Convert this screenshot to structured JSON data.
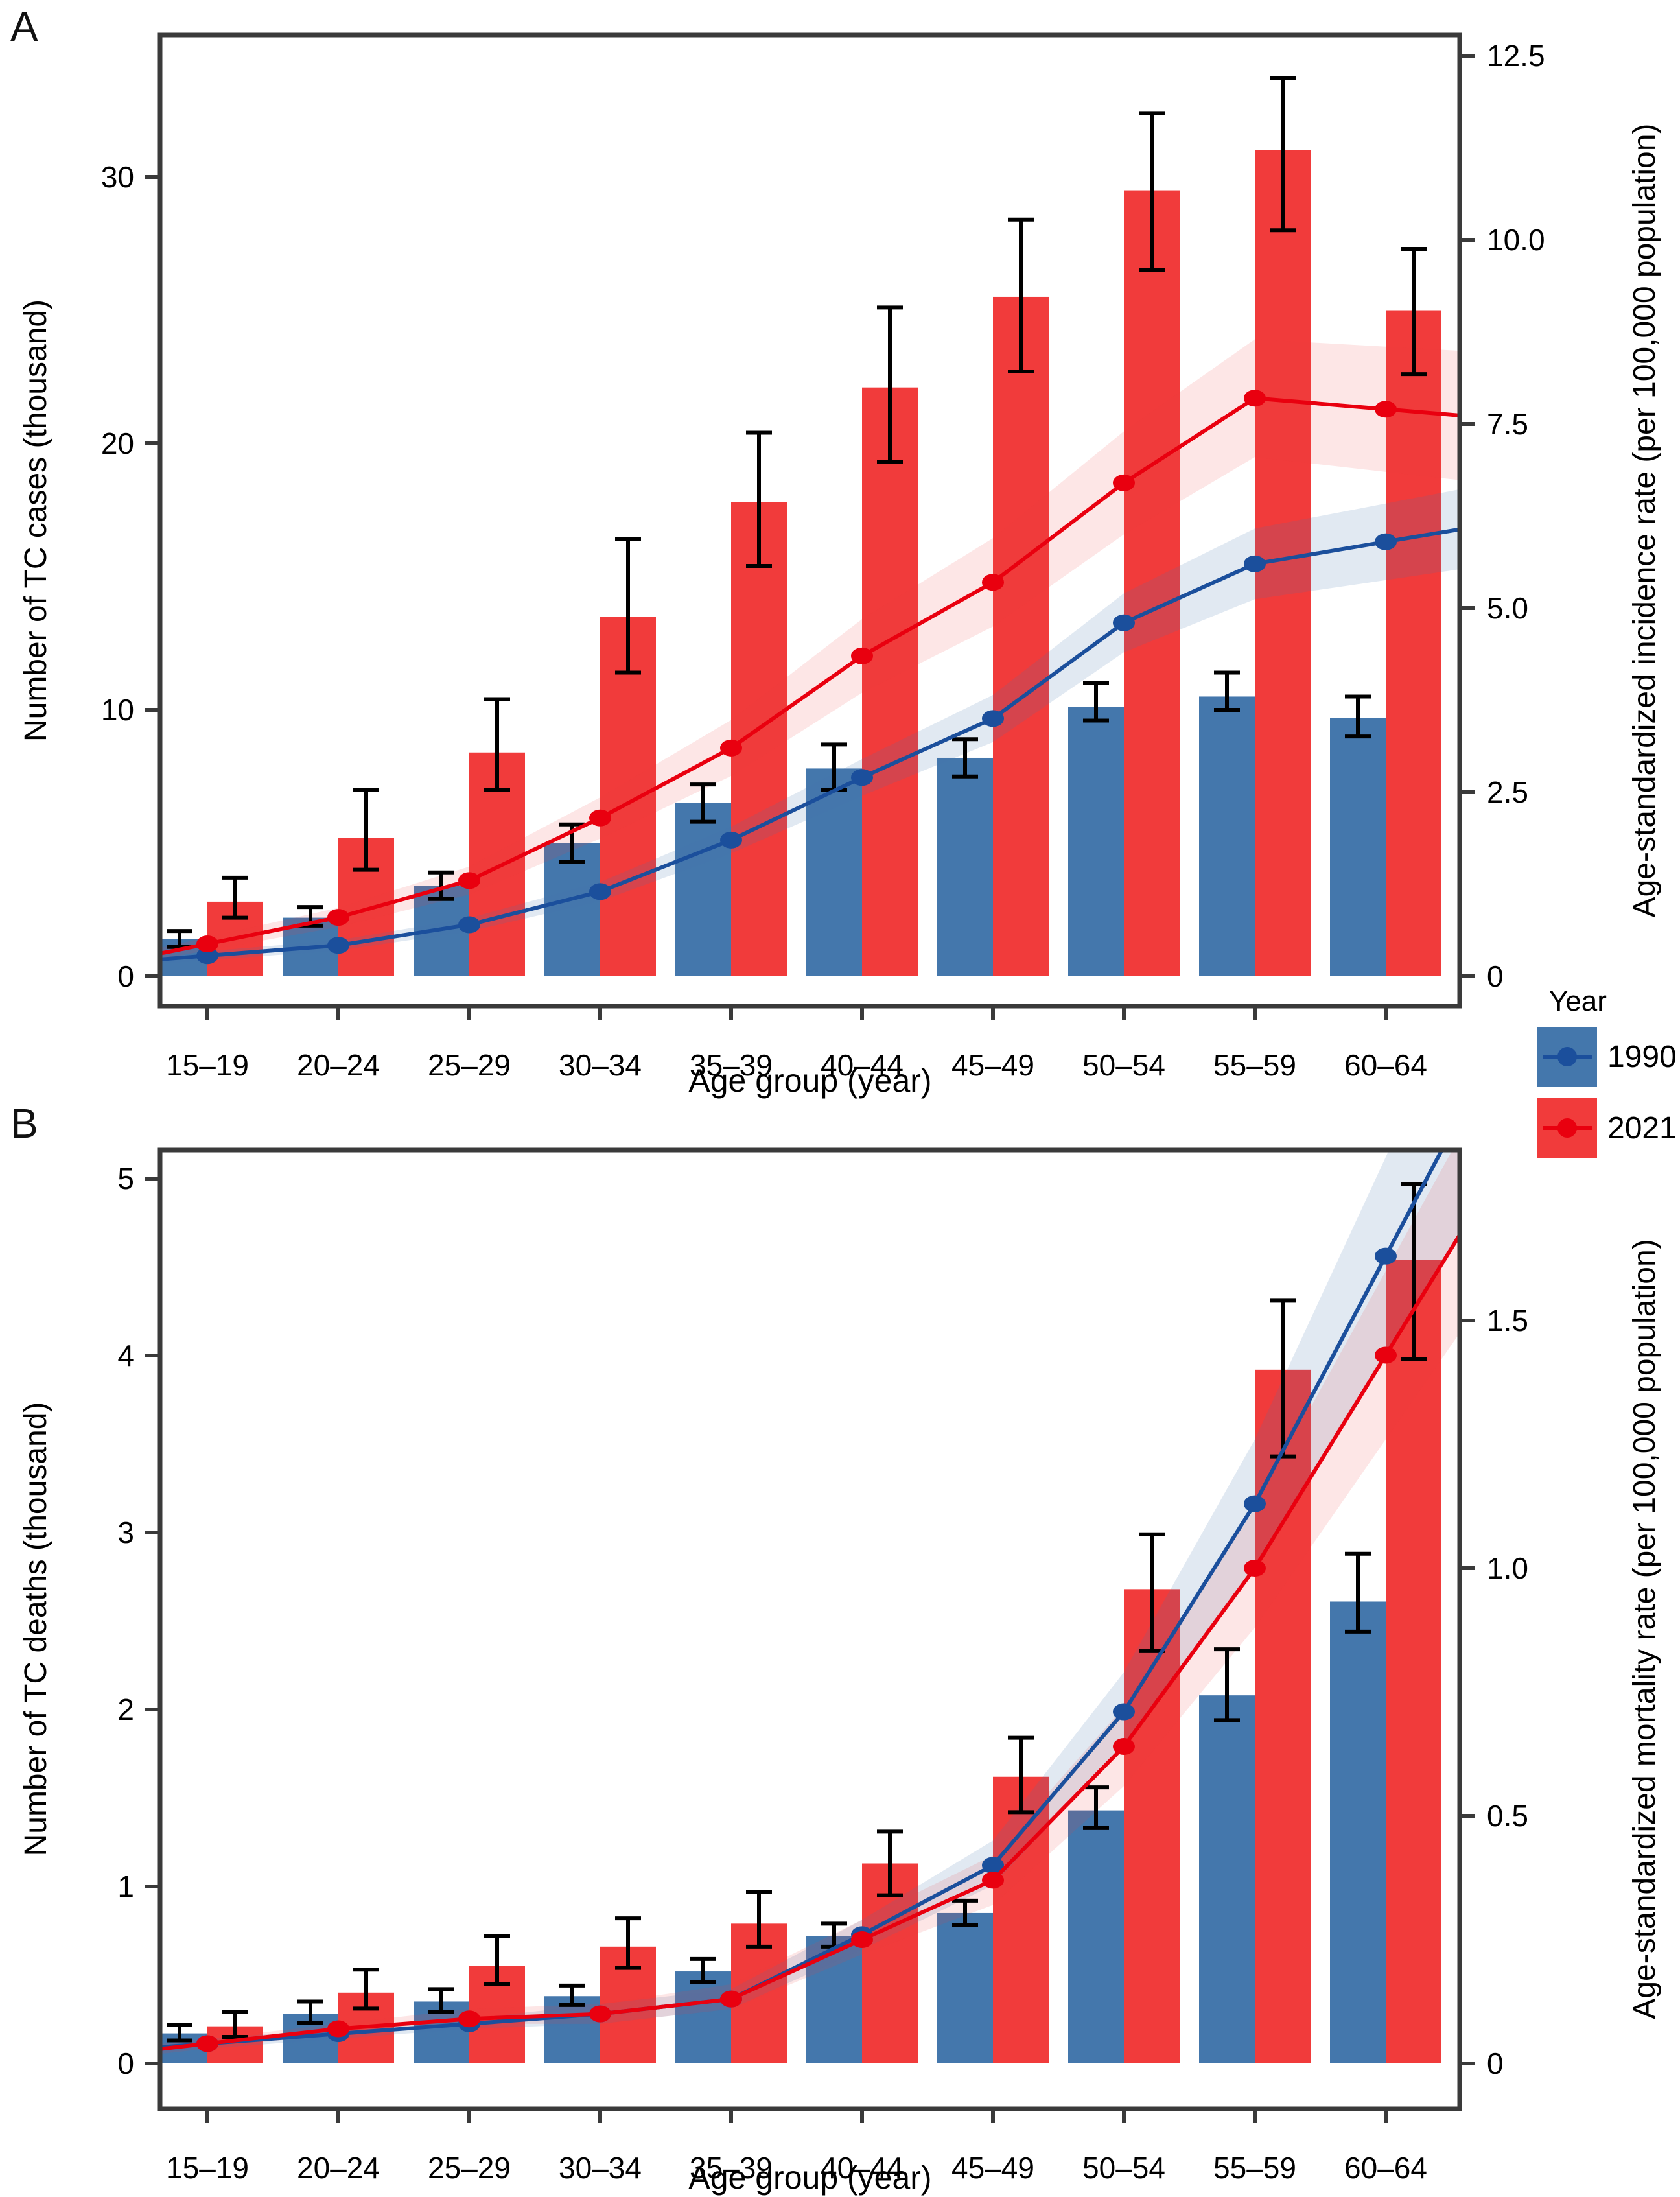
{
  "page_background": "#FFFFFF",
  "colors": {
    "bar_1990": "#4477AC",
    "bar_2021": "#F13B3B",
    "line_1990": "#1B4F9C",
    "line_2021": "#E9000F",
    "band_1990": "rgba(68,119,172,0.16)",
    "band_2021": "rgba(241,59,59,0.13)",
    "frame": "#3A3A3A",
    "error_bar": "#000000",
    "tick_text": "#000000"
  },
  "legend": {
    "title": "Year",
    "items": [
      {
        "label": "1990",
        "bar_color": "#4477AC",
        "line_color": "#1B4F9C"
      },
      {
        "label": "2021",
        "bar_color": "#F13B3B",
        "line_color": "#E9000F"
      }
    ]
  },
  "chart_data": [
    {
      "type": "bar+line",
      "panel_label": "A",
      "xlabel": "Age group (year)",
      "ylabel_left": "Number of TC cases (thousand)",
      "ylabel_right": "Age-standardized incidence rate (per 100,000 population)",
      "categories": [
        "15–19",
        "20–24",
        "25–29",
        "30–34",
        "35–39",
        "40–44",
        "45–49",
        "50–54",
        "55–59",
        "60–64"
      ],
      "ylim_left": [
        0,
        35.3
      ],
      "ylim_right": [
        0,
        12.8
      ],
      "yticks_left": {
        "values": [
          0,
          10,
          20,
          30
        ],
        "labels": [
          "0",
          "10",
          "20",
          "30"
        ]
      },
      "yticks_right": {
        "values": [
          0,
          2.5,
          5,
          7.5,
          10,
          12.5
        ],
        "labels": [
          "0",
          "2.5",
          "5.0",
          "7.5",
          "10.0",
          "12.5"
        ]
      },
      "grid": false,
      "series": {
        "bars_1990": {
          "name": "1990",
          "values": [
            1.4,
            2.2,
            3.4,
            5.0,
            6.5,
            7.8,
            8.2,
            10.1,
            10.5,
            9.7
          ],
          "ci_low": [
            1.1,
            1.9,
            2.9,
            4.3,
            5.8,
            7.0,
            7.5,
            9.6,
            10.0,
            9.0
          ],
          "ci_high": [
            1.7,
            2.6,
            3.9,
            5.7,
            7.2,
            8.7,
            8.9,
            11.0,
            11.4,
            10.5
          ]
        },
        "bars_2021": {
          "name": "2021",
          "values": [
            2.8,
            5.2,
            8.4,
            13.5,
            17.8,
            22.1,
            25.5,
            29.5,
            31.0,
            25.0
          ],
          "ci_low": [
            2.2,
            4.0,
            7.0,
            11.4,
            15.4,
            19.3,
            22.7,
            26.5,
            28.0,
            22.6
          ],
          "ci_high": [
            3.7,
            7.0,
            10.4,
            16.4,
            20.4,
            25.1,
            28.4,
            32.4,
            33.7,
            27.3
          ]
        },
        "line_1990": {
          "name": "1990",
          "values": [
            0.28,
            0.42,
            0.7,
            1.15,
            1.85,
            2.7,
            3.5,
            4.8,
            5.6,
            5.9
          ],
          "band_low": [
            0.22,
            0.35,
            0.61,
            1.02,
            1.67,
            2.45,
            3.18,
            4.4,
            5.12,
            5.38
          ],
          "band_high": [
            0.34,
            0.49,
            0.79,
            1.28,
            2.03,
            2.95,
            3.82,
            5.2,
            6.08,
            6.42
          ]
        },
        "line_2021": {
          "name": "2021",
          "values": [
            0.44,
            0.8,
            1.3,
            2.15,
            3.1,
            4.35,
            5.35,
            6.7,
            7.85,
            7.7
          ],
          "band_low": [
            0.35,
            0.67,
            1.11,
            1.87,
            2.72,
            3.85,
            4.75,
            6.0,
            7.05,
            6.85
          ],
          "band_high": [
            0.53,
            0.93,
            1.49,
            2.43,
            3.48,
            4.85,
            5.95,
            7.4,
            8.65,
            8.55
          ]
        }
      }
    },
    {
      "type": "bar+line",
      "panel_label": "B",
      "xlabel": "Age group (year)",
      "ylabel_left": "Number of TC deaths (thousand)",
      "ylabel_right": "Age-standardized mortality rate (per 100,000 population)",
      "categories": [
        "15–19",
        "20–24",
        "25–29",
        "30–34",
        "35–39",
        "40–44",
        "45–49",
        "50–54",
        "55–59",
        "60–64"
      ],
      "ylim_left": [
        0,
        5.16
      ],
      "ylim_right": [
        0,
        1.84
      ],
      "yticks_left": {
        "values": [
          0,
          1,
          2,
          3,
          4,
          5
        ],
        "labels": [
          "0",
          "1",
          "2",
          "3",
          "4",
          "5"
        ]
      },
      "yticks_right": {
        "values": [
          0,
          0.5,
          1.0,
          1.5
        ],
        "labels": [
          "0",
          "0.5",
          "1.0",
          "1.5"
        ]
      },
      "grid": false,
      "series": {
        "bars_1990": {
          "name": "1990",
          "values": [
            0.17,
            0.28,
            0.35,
            0.38,
            0.52,
            0.72,
            0.85,
            1.43,
            2.08,
            2.61
          ],
          "ci_low": [
            0.13,
            0.23,
            0.29,
            0.33,
            0.46,
            0.66,
            0.78,
            1.33,
            1.94,
            2.44
          ],
          "ci_high": [
            0.22,
            0.35,
            0.42,
            0.44,
            0.59,
            0.79,
            0.92,
            1.56,
            2.34,
            2.88
          ]
        },
        "bars_2021": {
          "name": "2021",
          "values": [
            0.21,
            0.4,
            0.55,
            0.66,
            0.79,
            1.13,
            1.62,
            2.68,
            3.92,
            4.54
          ],
          "ci_low": [
            0.15,
            0.31,
            0.45,
            0.54,
            0.66,
            0.95,
            1.42,
            2.33,
            3.43,
            3.98
          ],
          "ci_high": [
            0.29,
            0.53,
            0.72,
            0.82,
            0.97,
            1.31,
            1.84,
            2.99,
            4.31,
            4.97
          ]
        },
        "line_1990": {
          "name": "1990",
          "values": [
            0.04,
            0.06,
            0.08,
            0.1,
            0.13,
            0.26,
            0.4,
            0.71,
            1.13,
            1.63
          ],
          "band_low": [
            0.03,
            0.05,
            0.07,
            0.08,
            0.11,
            0.23,
            0.36,
            0.64,
            1.0,
            1.43
          ],
          "band_high": [
            0.05,
            0.07,
            0.09,
            0.12,
            0.15,
            0.29,
            0.45,
            0.79,
            1.26,
            1.83
          ]
        },
        "line_2021": {
          "name": "2021",
          "values": [
            0.04,
            0.07,
            0.09,
            0.1,
            0.13,
            0.25,
            0.37,
            0.64,
            1.0,
            1.43
          ],
          "band_low": [
            0.03,
            0.06,
            0.08,
            0.08,
            0.11,
            0.22,
            0.32,
            0.56,
            0.88,
            1.26
          ],
          "band_high": [
            0.05,
            0.08,
            0.11,
            0.12,
            0.16,
            0.29,
            0.42,
            0.72,
            1.12,
            1.6
          ]
        }
      }
    }
  ]
}
